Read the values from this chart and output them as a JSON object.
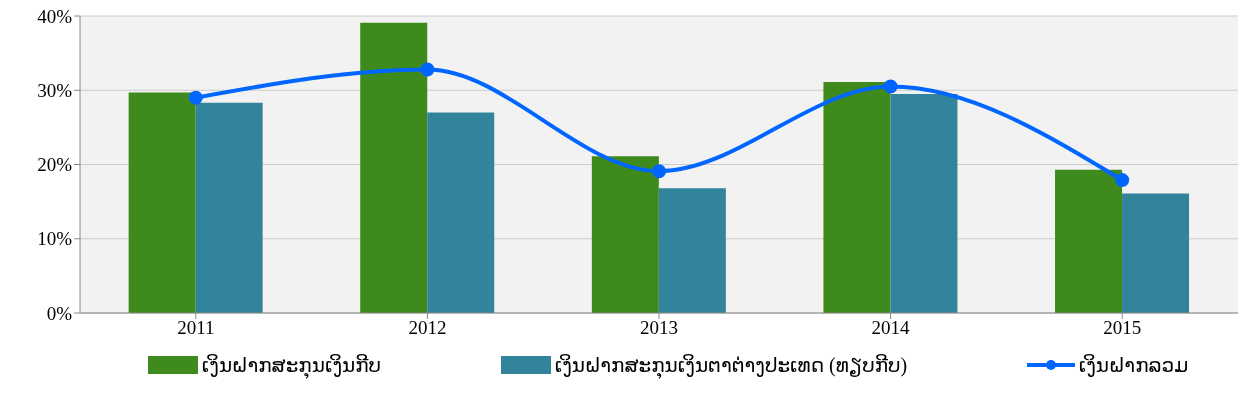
{
  "chart_data": {
    "type": "bar",
    "categories": [
      "2011",
      "2012",
      "2013",
      "2014",
      "2015"
    ],
    "series": [
      {
        "name": "ເງິນຝາກສະກຸນເງິນກີບ",
        "color": "#3f8a1c",
        "values": [
          29.7,
          39.1,
          21.1,
          31.1,
          19.3
        ]
      },
      {
        "name": "ເງິນຝາກສະກຸນເງິນຕາຕ່າງປະເທດ (ທຽບກີບ)",
        "color": "#31849b",
        "values": [
          28.3,
          27.0,
          16.8,
          29.5,
          16.1
        ]
      },
      {
        "name": "ເງິນຝາກລວມ",
        "type": "line",
        "color": "#0066ff",
        "values": [
          29.0,
          32.8,
          19.1,
          30.5,
          17.9
        ]
      }
    ],
    "ylim": [
      0,
      40
    ],
    "yticks": [
      {
        "value": 0,
        "label": "0%"
      },
      {
        "value": 10,
        "label": "10%"
      },
      {
        "value": 20,
        "label": "20%"
      },
      {
        "value": 30,
        "label": "30%"
      },
      {
        "value": 40,
        "label": "40%"
      }
    ],
    "grid": "y",
    "legend": "bottom",
    "marker": "circle"
  }
}
